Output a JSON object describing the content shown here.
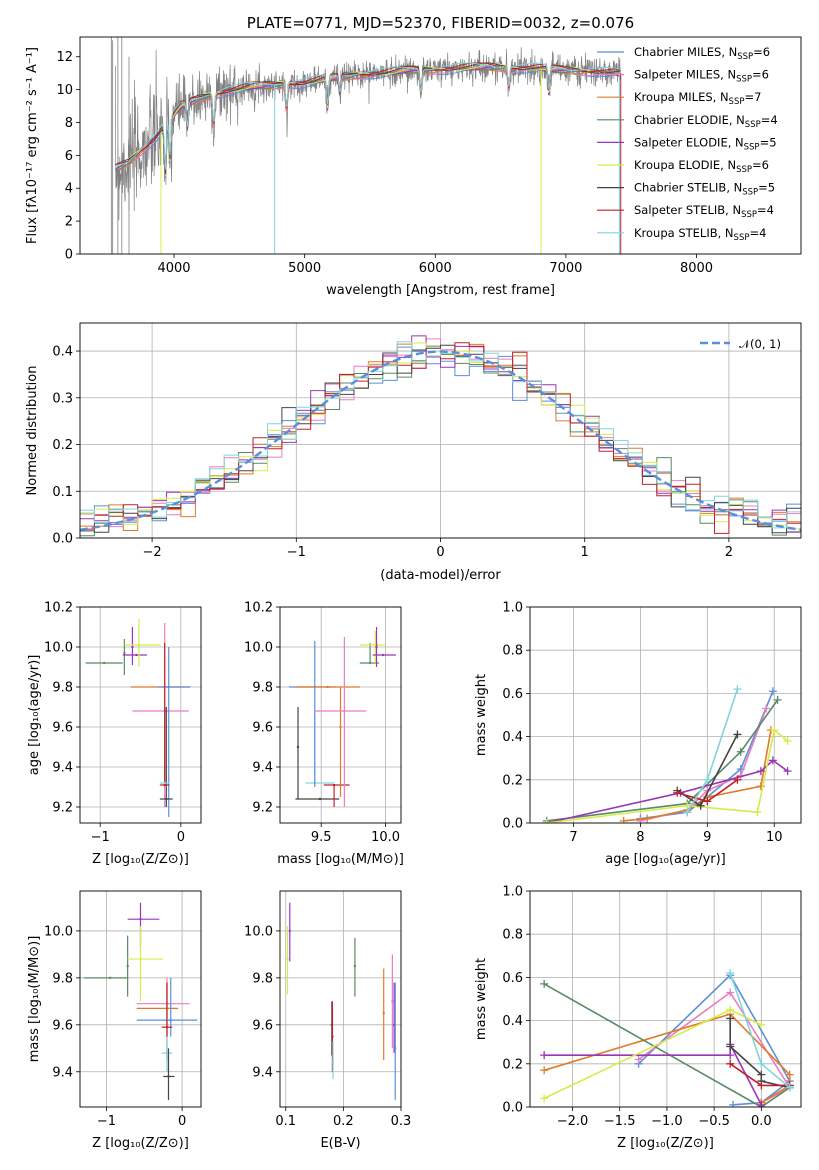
{
  "colors": {
    "Chabrier MILES": "#5b8fd9",
    "Salpeter MILES": "#e87dc2",
    "Kroupa MILES": "#e07b2a",
    "Chabrier ELODIE": "#5a8a64",
    "Salpeter ELODIE": "#9b35b8",
    "Kroupa ELODIE": "#d6ec4a",
    "Chabrier STELIB": "#444444",
    "Salpeter STELIB": "#c0202a",
    "Kroupa STELIB": "#7fd6dc",
    "spectrum": "#808080",
    "gaussian": "#5b8fd9"
  },
  "chart_data": [
    {
      "id": "spectrum",
      "type": "line",
      "title": "PLATE=0771, MJD=52370, FIBERID=0032, z=0.076",
      "xlabel": "wavelength [Angstrom, rest frame]",
      "ylabel": "Flux [fλ10⁻¹⁷ erg cm⁻² s⁻¹ A⁻¹]",
      "xlim": [
        3280,
        8800
      ],
      "ylim": [
        0,
        13.2
      ],
      "xticks": [
        4000,
        5000,
        6000,
        7000,
        8000
      ],
      "yticks": [
        0,
        2,
        4,
        6,
        8,
        10,
        12
      ],
      "grid": false,
      "legend_position": "upper right",
      "legend": [
        {
          "label": "Chabrier MILES, N",
          "sub": "SSP",
          "tail": "=6"
        },
        {
          "label": "Salpeter MILES, N",
          "sub": "SSP",
          "tail": "=6"
        },
        {
          "label": "Kroupa MILES, N",
          "sub": "SSP",
          "tail": "=7"
        },
        {
          "label": "Chabrier ELODIE, N",
          "sub": "SSP",
          "tail": "=4"
        },
        {
          "label": "Salpeter ELODIE, N",
          "sub": "SSP",
          "tail": "=5"
        },
        {
          "label": "Kroupa ELODIE, N",
          "sub": "SSP",
          "tail": "=6"
        },
        {
          "label": "Chabrier STELIB, N",
          "sub": "SSP",
          "tail": "=5"
        },
        {
          "label": "Salpeter STELIB, N",
          "sub": "SSP",
          "tail": "=4"
        },
        {
          "label": "Kroupa STELIB, N",
          "sub": "SSP",
          "tail": "=4"
        }
      ],
      "continuum": {
        "x": [
          3550,
          3650,
          3750,
          3850,
          3950,
          4050,
          4200,
          4400,
          4600,
          4800,
          5000,
          5200,
          5400,
          5600,
          5800,
          6000,
          6200,
          6400,
          6600,
          6800,
          7000,
          7200,
          7400
        ],
        "y": [
          5.2,
          5.6,
          6.3,
          7.0,
          8.0,
          9.0,
          9.5,
          9.9,
          10.2,
          10.3,
          10.4,
          10.7,
          10.9,
          11.0,
          11.2,
          11.2,
          11.3,
          11.4,
          11.3,
          11.3,
          11.2,
          11.1,
          11.0
        ]
      }
    },
    {
      "id": "residuals",
      "type": "line",
      "xlabel": "(data-model)/error",
      "ylabel": "Normed distribution",
      "xlim": [
        -2.5,
        2.5
      ],
      "ylim": [
        0,
        0.46
      ],
      "xticks": [
        -2,
        -1,
        0,
        1,
        2
      ],
      "xtick_labels": [
        "−2",
        "−1",
        "0",
        "1",
        "2"
      ],
      "yticks": [
        0.0,
        0.1,
        0.2,
        0.3,
        0.4
      ],
      "ytick_labels": [
        "0.0",
        "0.1",
        "0.2",
        "0.3",
        "0.4"
      ],
      "grid": true,
      "legend_position": "upper right",
      "legend_label": "𝒩(0, 1)",
      "gaussian": {
        "mean": 0,
        "sigma": 1
      }
    },
    {
      "id": "z-age",
      "type": "scatter",
      "xlabel": "Z [log₁₀(Z/Z⊙)]",
      "ylabel": "age  [log₁₀(age/yr)]",
      "xlim": [
        -1.25,
        0.25
      ],
      "ylim": [
        9.12,
        10.2
      ],
      "xticks": [
        -1,
        0
      ],
      "xtick_labels": [
        "−1",
        "0"
      ],
      "yticks": [
        9.2,
        9.4,
        9.6,
        9.8,
        10.0,
        10.2
      ],
      "ytick_labels": [
        "9.2",
        "9.4",
        "9.6",
        "9.8",
        "10.0",
        "10.2"
      ],
      "grid": true,
      "points": [
        {
          "s": "Chabrier ELODIE",
          "x": -0.95,
          "y": 9.92,
          "xl": -1.18,
          "xh": -0.72,
          "yl": 9.92,
          "yh": 9.92
        },
        {
          "s": "Chabrier ELODIE",
          "x": -0.7,
          "y": 9.97,
          "xl": -0.7,
          "xh": -0.7,
          "yl": 9.86,
          "yh": 10.04
        },
        {
          "s": "Salpeter ELODIE",
          "x": -0.55,
          "y": 9.96,
          "xl": -0.72,
          "xh": -0.42,
          "yl": 9.96,
          "yh": 9.96
        },
        {
          "s": "Salpeter ELODIE",
          "x": -0.6,
          "y": 10.0,
          "xl": -0.6,
          "xh": -0.6,
          "yl": 9.91,
          "yh": 10.1
        },
        {
          "s": "Kroupa ELODIE",
          "x": -0.52,
          "y": 10.01,
          "xl": -0.7,
          "xh": -0.25,
          "yl": 9.9,
          "yh": 10.14
        },
        {
          "s": "Kroupa MILES",
          "x": -0.15,
          "y": 9.8,
          "xl": -0.62,
          "xh": 0.1,
          "yl": 9.8,
          "yh": 9.8
        },
        {
          "s": "Salpeter MILES",
          "x": -0.2,
          "y": 9.68,
          "xl": -0.6,
          "xh": 0.1,
          "yl": 9.2,
          "yh": 10.12
        },
        {
          "s": "Chabrier MILES",
          "x": -0.15,
          "y": 9.8,
          "xl": -0.28,
          "xh": 0.12,
          "yl": 9.15,
          "yh": 10.0
        },
        {
          "s": "Chabrier STELIB",
          "x": -0.18,
          "y": 9.24,
          "xl": -0.26,
          "xh": -0.1,
          "yl": 9.2,
          "yh": 9.7
        },
        {
          "s": "Salpeter STELIB",
          "x": -0.2,
          "y": 9.31,
          "xl": -0.26,
          "xh": -0.14,
          "yl": 9.31,
          "yh": 10.02
        },
        {
          "s": "Kroupa STELIB",
          "x": -0.2,
          "y": 9.32,
          "xl": -0.26,
          "xh": -0.14,
          "yl": 9.32,
          "yh": 9.32
        }
      ]
    },
    {
      "id": "mass-age",
      "type": "scatter",
      "xlabel": "mass [log₁₀(M/M⊙)]",
      "ylabel": "",
      "xlim": [
        9.18,
        10.12
      ],
      "ylim": [
        9.12,
        10.2
      ],
      "xticks": [
        9.5,
        10.0
      ],
      "xtick_labels": [
        "9.5",
        "10.0"
      ],
      "yticks": [
        9.2,
        9.4,
        9.6,
        9.8,
        10.0,
        10.2
      ],
      "ytick_labels": [
        "9.2",
        "9.4",
        "9.6",
        "9.8",
        "10.0",
        "10.2"
      ],
      "grid": true,
      "points": [
        {
          "s": "Chabrier STELIB",
          "x": 9.49,
          "y": 9.24,
          "xl": 9.3,
          "xh": 9.64,
          "yl": 9.24,
          "yh": 9.24
        },
        {
          "s": "Chabrier STELIB",
          "x": 9.32,
          "y": 9.5,
          "xl": 9.32,
          "xh": 9.32,
          "yl": 9.24,
          "yh": 9.7
        },
        {
          "s": "Salpeter STELIB",
          "x": 9.6,
          "y": 9.31,
          "xl": 9.52,
          "xh": 9.72,
          "yl": 9.2,
          "yh": 9.31
        },
        {
          "s": "Kroupa STELIB",
          "x": 9.45,
          "y": 9.32,
          "xl": 9.38,
          "xh": 9.6,
          "yl": 9.32,
          "yh": 9.68
        },
        {
          "s": "Chabrier MILES",
          "x": 9.45,
          "y": 9.8,
          "xl": 9.25,
          "xh": 9.62,
          "yl": 9.3,
          "yh": 10.03
        },
        {
          "s": "Kroupa MILES",
          "x": 9.55,
          "y": 9.8,
          "xl": 9.3,
          "xh": 9.8,
          "yl": 9.8,
          "yh": 9.8
        },
        {
          "s": "Kroupa MILES",
          "x": 9.65,
          "y": 9.6,
          "xl": 9.65,
          "xh": 9.65,
          "yl": 9.25,
          "yh": 9.8
        },
        {
          "s": "Salpeter MILES",
          "x": 9.68,
          "y": 9.68,
          "xl": 9.45,
          "xh": 9.85,
          "yl": 9.2,
          "yh": 10.05
        },
        {
          "s": "Chabrier ELODIE",
          "x": 9.88,
          "y": 9.92,
          "xl": 9.8,
          "xh": 9.95,
          "yl": 9.92,
          "yh": 10.02
        },
        {
          "s": "Kroupa ELODIE",
          "x": 9.92,
          "y": 10.01,
          "xl": 9.8,
          "xh": 10.0,
          "yl": 9.92,
          "yh": 10.08
        },
        {
          "s": "Salpeter ELODIE",
          "x": 9.98,
          "y": 9.96,
          "xl": 9.9,
          "xh": 10.08,
          "yl": 9.96,
          "yh": 9.96
        },
        {
          "s": "Salpeter ELODIE",
          "x": 9.93,
          "y": 10.0,
          "xl": 9.93,
          "xh": 9.93,
          "yl": 9.9,
          "yh": 10.1
        }
      ]
    },
    {
      "id": "age-weight",
      "type": "line",
      "xlabel": "age  [log₁₀(age/yr)]",
      "ylabel": "mass weight",
      "xlim": [
        6.35,
        10.4
      ],
      "ylim": [
        0,
        1.0
      ],
      "xticks": [
        7,
        8,
        9,
        10
      ],
      "xtick_labels": [
        "7",
        "8",
        "9",
        "10"
      ],
      "yticks": [
        0.0,
        0.2,
        0.4,
        0.6,
        0.8,
        1.0
      ],
      "ytick_labels": [
        "0.0",
        "0.2",
        "0.4",
        "0.6",
        "0.8",
        "1.0"
      ],
      "grid": true,
      "series": [
        {
          "name": "Chabrier MILES",
          "x": [
            8.0,
            8.7,
            9.0,
            9.5,
            9.98
          ],
          "y": [
            0.02,
            0.05,
            0.12,
            0.25,
            0.61
          ]
        },
        {
          "name": "Salpeter MILES",
          "x": [
            8.0,
            8.7,
            9.0,
            9.5,
            9.88
          ],
          "y": [
            0.01,
            0.06,
            0.15,
            0.22,
            0.53
          ]
        },
        {
          "name": "Kroupa MILES",
          "x": [
            7.75,
            8.1,
            8.7,
            9.0,
            9.8,
            9.95
          ],
          "y": [
            0.01,
            0.02,
            0.06,
            0.12,
            0.17,
            0.43
          ]
        },
        {
          "name": "Chabrier ELODIE",
          "x": [
            6.6,
            8.7,
            9.5,
            10.05
          ],
          "y": [
            0.01,
            0.09,
            0.33,
            0.57
          ]
        },
        {
          "name": "Salpeter ELODIE",
          "x": [
            6.6,
            8.6,
            9.8,
            9.98,
            10.2
          ],
          "y": [
            0.0,
            0.14,
            0.24,
            0.29,
            0.24
          ]
        },
        {
          "name": "Kroupa ELODIE",
          "x": [
            6.6,
            8.7,
            9.75,
            10.0,
            10.2
          ],
          "y": [
            0.0,
            0.08,
            0.05,
            0.43,
            0.38
          ]
        },
        {
          "name": "Chabrier STELIB",
          "x": [
            8.55,
            8.9,
            9.45
          ],
          "y": [
            0.15,
            0.08,
            0.41
          ]
        },
        {
          "name": "Salpeter STELIB",
          "x": [
            8.55,
            9.0,
            9.45
          ],
          "y": [
            0.14,
            0.1,
            0.2
          ]
        },
        {
          "name": "Kroupa STELIB",
          "x": [
            8.7,
            9.0,
            9.45
          ],
          "y": [
            0.05,
            0.2,
            0.62
          ]
        }
      ]
    },
    {
      "id": "z-mass",
      "type": "scatter",
      "xlabel": "Z [log₁₀(Z/Z⊙)]",
      "ylabel": "mass [log₁₀(M/M⊙)]",
      "xlim": [
        -1.35,
        0.25
      ],
      "ylim": [
        9.25,
        10.17
      ],
      "xticks": [
        -1,
        0
      ],
      "xtick_labels": [
        "−1",
        "0"
      ],
      "yticks": [
        9.4,
        9.6,
        9.8,
        10.0
      ],
      "ytick_labels": [
        "9.4",
        "9.6",
        "9.8",
        "10.0"
      ],
      "grid": true,
      "points": [
        {
          "s": "Chabrier ELODIE",
          "x": -0.95,
          "y": 9.8,
          "xl": -1.3,
          "xh": -0.72,
          "yl": 9.8,
          "yh": 9.8
        },
        {
          "s": "Chabrier ELODIE",
          "x": -0.72,
          "y": 9.85,
          "xl": -0.72,
          "xh": -0.72,
          "yl": 9.72,
          "yh": 9.98
        },
        {
          "s": "Salpeter ELODIE",
          "x": -0.55,
          "y": 10.05,
          "xl": -0.72,
          "xh": -0.3,
          "yl": 9.93,
          "yh": 10.12
        },
        {
          "s": "Kroupa ELODIE",
          "x": -0.55,
          "y": 9.88,
          "xl": -0.72,
          "xh": -0.25,
          "yl": 9.7,
          "yh": 10.02
        },
        {
          "s": "Salpeter MILES",
          "x": -0.2,
          "y": 9.69,
          "xl": -0.6,
          "xh": 0.1,
          "yl": 9.55,
          "yh": 9.8
        },
        {
          "s": "Kroupa MILES",
          "x": -0.2,
          "y": 9.67,
          "xl": -0.6,
          "xh": -0.05,
          "yl": 9.55,
          "yh": 9.78
        },
        {
          "s": "Chabrier MILES",
          "x": -0.15,
          "y": 9.62,
          "xl": -0.6,
          "xh": 0.2,
          "yl": 9.55,
          "yh": 9.8
        },
        {
          "s": "Salpeter STELIB",
          "x": -0.2,
          "y": 9.59,
          "xl": -0.27,
          "xh": -0.13,
          "yl": 9.45,
          "yh": 9.78
        },
        {
          "s": "Kroupa STELIB",
          "x": -0.2,
          "y": 9.48,
          "xl": -0.27,
          "xh": -0.13,
          "yl": 9.4,
          "yh": 9.55
        },
        {
          "s": "Chabrier STELIB",
          "x": -0.18,
          "y": 9.38,
          "xl": -0.25,
          "xh": -0.1,
          "yl": 9.28,
          "yh": 9.5
        }
      ]
    },
    {
      "id": "ebv-mass",
      "type": "scatter",
      "xlabel": "E(B-V)",
      "ylabel": "",
      "xlim": [
        0.09,
        0.3
      ],
      "ylim": [
        9.25,
        10.17
      ],
      "xticks": [
        0.1,
        0.2,
        0.3
      ],
      "xtick_labels": [
        "0.1",
        "0.2",
        "0.3"
      ],
      "yticks": [
        9.4,
        9.6,
        9.8,
        10.0
      ],
      "ytick_labels": [
        "9.4",
        "9.6",
        "9.8",
        "10.0"
      ],
      "grid": true,
      "points": [
        {
          "s": "Kroupa ELODIE",
          "x": 0.103,
          "y": 9.88,
          "xl": 0.103,
          "xh": 0.103,
          "yl": 9.73,
          "yh": 10.02
        },
        {
          "s": "Salpeter ELODIE",
          "x": 0.107,
          "y": 10.0,
          "xl": 0.107,
          "xh": 0.107,
          "yl": 9.87,
          "yh": 10.12
        },
        {
          "s": "Chabrier STELIB",
          "x": 0.18,
          "y": 9.6,
          "xl": 0.18,
          "xh": 0.18,
          "yl": 9.47,
          "yh": 9.7
        },
        {
          "s": "Salpeter STELIB",
          "x": 0.181,
          "y": 9.55,
          "xl": 0.181,
          "xh": 0.181,
          "yl": 9.4,
          "yh": 9.7
        },
        {
          "s": "Kroupa STELIB",
          "x": 0.182,
          "y": 9.44,
          "xl": 0.182,
          "xh": 0.182,
          "yl": 9.37,
          "yh": 9.53
        },
        {
          "s": "Chabrier ELODIE",
          "x": 0.22,
          "y": 9.85,
          "xl": 0.22,
          "xh": 0.22,
          "yl": 9.72,
          "yh": 9.97
        },
        {
          "s": "Kroupa MILES",
          "x": 0.27,
          "y": 9.65,
          "xl": 0.27,
          "xh": 0.27,
          "yl": 9.45,
          "yh": 9.84
        },
        {
          "s": "Salpeter MILES",
          "x": 0.285,
          "y": 9.7,
          "xl": 0.285,
          "xh": 0.285,
          "yl": 9.5,
          "yh": 9.9
        },
        {
          "s": "Salpeter ELODIE",
          "x": 0.288,
          "y": 9.6,
          "xl": 0.288,
          "xh": 0.288,
          "yl": 9.48,
          "yh": 9.78
        },
        {
          "s": "Chabrier MILES",
          "x": 0.29,
          "y": 9.5,
          "xl": 0.29,
          "xh": 0.29,
          "yl": 9.28,
          "yh": 9.78
        }
      ]
    },
    {
      "id": "z-weight",
      "type": "line",
      "xlabel": "Z [log₁₀(Z/Z⊙)]",
      "ylabel": "mass weight",
      "xlim": [
        -2.45,
        0.42
      ],
      "ylim": [
        0,
        1.0
      ],
      "xticks": [
        -2.0,
        -1.5,
        -1.0,
        -0.5,
        0.0
      ],
      "xtick_labels": [
        "−2.0",
        "−1.5",
        "−1.0",
        "−0.5",
        "0.0"
      ],
      "yticks": [
        0.0,
        0.2,
        0.4,
        0.6,
        0.8,
        1.0
      ],
      "ytick_labels": [
        "0.0",
        "0.2",
        "0.4",
        "0.6",
        "0.8",
        "1.0"
      ],
      "grid": true,
      "series": [
        {
          "name": "Chabrier MILES",
          "x": [
            -1.3,
            -0.33,
            0.3,
            0.0,
            -0.3
          ],
          "y": [
            0.2,
            0.61,
            0.12,
            0.02,
            0.01
          ]
        },
        {
          "name": "Salpeter MILES",
          "x": [
            -1.3,
            -0.33,
            0.3,
            0.0
          ],
          "y": [
            0.22,
            0.53,
            0.09,
            0.02
          ]
        },
        {
          "name": "Kroupa MILES",
          "x": [
            -2.3,
            -0.33,
            0.3,
            0.3,
            0.0
          ],
          "y": [
            0.17,
            0.43,
            0.15,
            0.1,
            0.02
          ]
        },
        {
          "name": "Chabrier ELODIE",
          "x": [
            -2.3,
            0.0,
            0.3
          ],
          "y": [
            0.57,
            0.0,
            0.09
          ]
        },
        {
          "name": "Salpeter ELODIE",
          "x": [
            -2.3,
            -0.33,
            -0.33,
            0.0
          ],
          "y": [
            0.24,
            0.24,
            0.29,
            0.01
          ]
        },
        {
          "name": "Kroupa ELODIE",
          "x": [
            -2.3,
            -0.33,
            0.0
          ],
          "y": [
            0.04,
            0.45,
            0.38
          ]
        },
        {
          "name": "Chabrier STELIB",
          "x": [
            -0.33,
            -0.33,
            0.0,
            0.0,
            0.3
          ],
          "y": [
            0.41,
            0.28,
            0.15,
            0.12,
            0.09
          ]
        },
        {
          "name": "Salpeter STELIB",
          "x": [
            -0.33,
            0.0,
            0.3
          ],
          "y": [
            0.2,
            0.1,
            0.1
          ]
        },
        {
          "name": "Kroupa STELIB",
          "x": [
            -0.33,
            0.0,
            0.3
          ],
          "y": [
            0.62,
            0.2,
            0.09
          ]
        }
      ]
    }
  ]
}
